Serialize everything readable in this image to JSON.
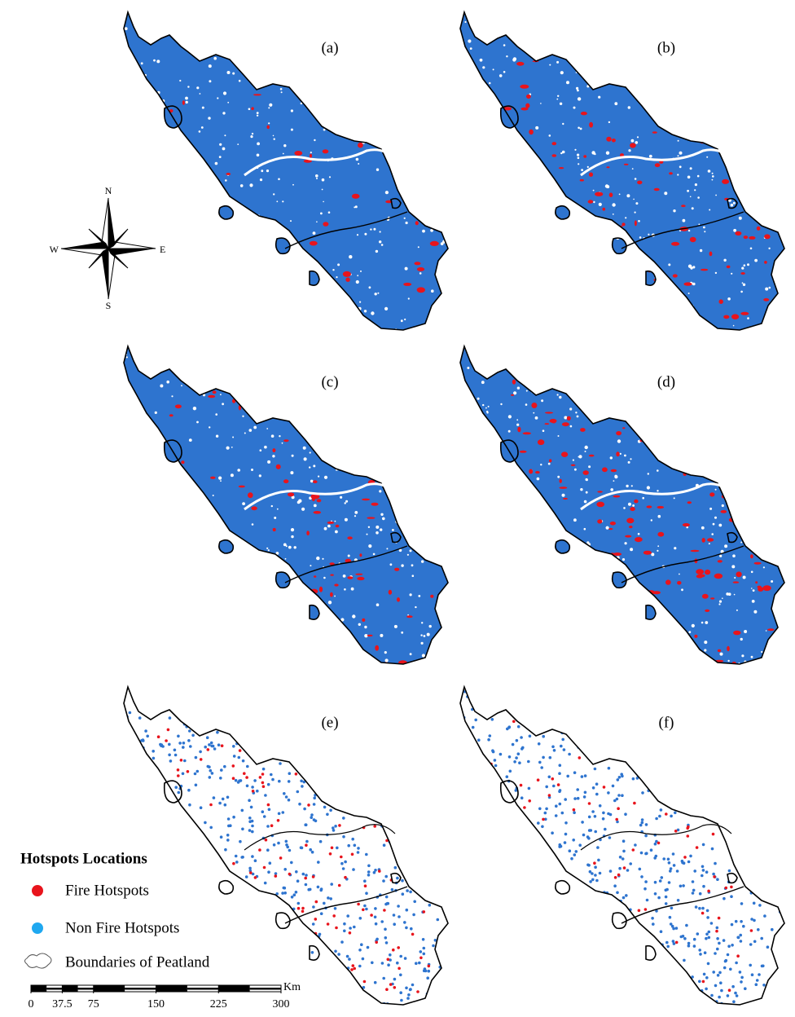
{
  "panels": [
    {
      "label": "(a)"
    },
    {
      "label": "(b)"
    },
    {
      "label": "(c)"
    },
    {
      "label": "(d)"
    },
    {
      "label": "(e)"
    },
    {
      "label": "(f)"
    }
  ],
  "compass": {
    "north": "N",
    "south": "S",
    "east": "E",
    "west": "W"
  },
  "legend": {
    "title": "Hotspots Locations",
    "items": [
      {
        "label": "Fire Hotspots",
        "color": "#e8141c"
      },
      {
        "label": "Non Fire Hotspots",
        "color": "#1fa8f0"
      },
      {
        "label": "Boundaries of Peatland"
      }
    ]
  },
  "scale_bar": {
    "ticks": [
      0,
      37.5,
      75,
      150,
      225,
      300
    ],
    "unit": "Km"
  }
}
